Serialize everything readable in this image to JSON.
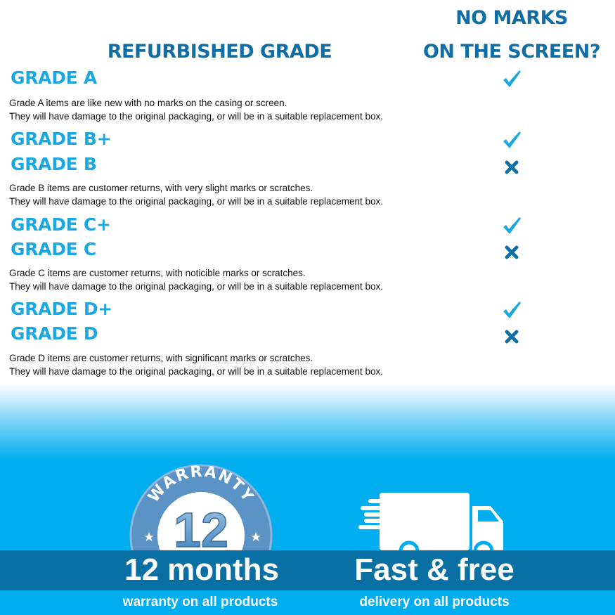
{
  "header": {
    "column_grade": "REFURBISHED GRADE",
    "column_marks_line1": "NO MARKS",
    "column_marks_line2": "ON THE SCREEN?"
  },
  "grades": [
    {
      "title": "GRADE A",
      "no_marks": true
    },
    {
      "title": "GRADE B+",
      "no_marks": true
    },
    {
      "title": "GRADE B",
      "no_marks": false
    },
    {
      "title": "GRADE C+",
      "no_marks": true
    },
    {
      "title": "GRADE C",
      "no_marks": false
    },
    {
      "title": "GRADE D+",
      "no_marks": true
    },
    {
      "title": "GRADE D",
      "no_marks": false
    }
  ],
  "descriptions": [
    {
      "line1": "Grade A items are like new with no marks on the casing or screen.",
      "line2": "They will have damage to the original packaging, or will be in a suitable replacement box."
    },
    {
      "line1": "Grade B items are customer returns, with very slight marks or scratches.",
      "line2": "They will have damage to the original packaging, or will be in a suitable replacement box."
    },
    {
      "line1": "Grade C items are customer returns, with noticible marks or scratches.",
      "line2": "They will have damage to the original packaging, or will be in a suitable replacement box."
    },
    {
      "line1": "Grade D items are customer returns, with significant marks or scratches.",
      "line2": "They will have damage to the original packaging, or will be in a suitable replacement box."
    }
  ],
  "footer": {
    "badge_text": "WARRANTY",
    "badge_number": "12",
    "warranty_title": "12 months",
    "warranty_sub": "warranty on all products",
    "delivery_title": "Fast & free",
    "delivery_sub": "delivery on all products"
  },
  "colors": {
    "heading": "#0f6ea6",
    "grade": "#1ba7e1",
    "check": "#1ba7e1",
    "cross": "#0f6ea6",
    "band": "#0a6fa3",
    "background": "#00adef"
  }
}
